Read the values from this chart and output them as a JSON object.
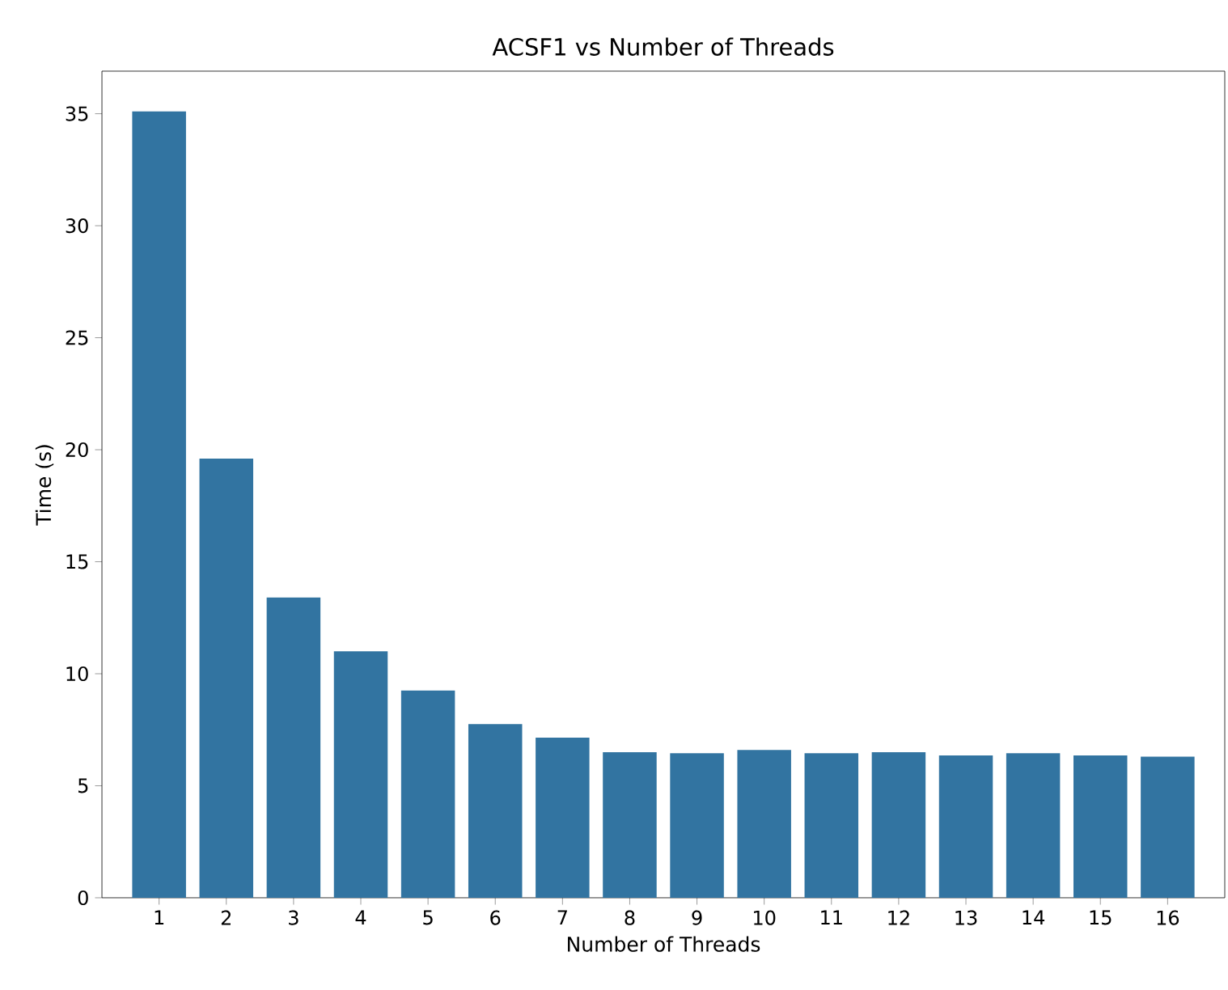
{
  "chart_data": {
    "type": "bar",
    "title": "ACSF1 vs Number of Threads",
    "xlabel": "Number of Threads",
    "ylabel": "Time (s)",
    "categories": [
      "1",
      "2",
      "3",
      "4",
      "5",
      "6",
      "7",
      "8",
      "9",
      "10",
      "11",
      "12",
      "13",
      "14",
      "15",
      "16"
    ],
    "values": [
      35.1,
      19.6,
      13.4,
      11.0,
      9.25,
      7.75,
      7.15,
      6.5,
      6.45,
      6.6,
      6.45,
      6.5,
      6.35,
      6.45,
      6.35,
      6.3
    ],
    "color": "#3274a1",
    "ylim": [
      0,
      36.9
    ],
    "yticks": [
      0,
      5,
      10,
      15,
      20,
      25,
      30,
      35
    ]
  }
}
